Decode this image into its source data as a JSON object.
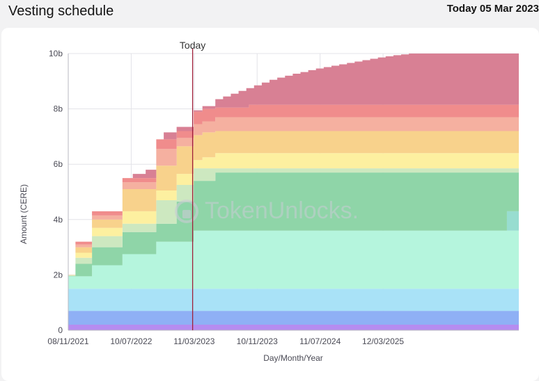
{
  "header": {
    "title": "Vesting schedule",
    "date": "Today 05 Mar 2023"
  },
  "watermark": {
    "brand": "TokenUnlocks.",
    "icon": "token-unlocks-logo-icon"
  },
  "chart_data": {
    "type": "area",
    "stacked": true,
    "step": true,
    "ylabel": "Amount (CERE)",
    "xlabel": "Day/Month/Year",
    "x_start": "2021-11-08",
    "x_end": "2026-08-20",
    "ylim": [
      0,
      10000000000
    ],
    "y_ticks": [
      {
        "value": 0,
        "label": "0"
      },
      {
        "value": 2000000000,
        "label": "2b"
      },
      {
        "value": 4000000000,
        "label": "4b"
      },
      {
        "value": 6000000000,
        "label": "6b"
      },
      {
        "value": 8000000000,
        "label": "8b"
      },
      {
        "value": 10000000000,
        "label": "10b"
      }
    ],
    "x_ticks": [
      {
        "date": "2021-11-08",
        "label": "08/11/2021"
      },
      {
        "date": "2022-07-10",
        "label": "10/07/2022"
      },
      {
        "date": "2023-03-11",
        "label": "11/03/2023"
      },
      {
        "date": "2023-11-10",
        "label": "10/11/2023"
      },
      {
        "date": "2024-07-11",
        "label": "11/07/2024"
      },
      {
        "date": "2025-03-12",
        "label": "12/03/2025"
      }
    ],
    "today": {
      "date": "2023-03-05",
      "label": "Today",
      "color": "#a0203a"
    },
    "grid": true,
    "series": [
      {
        "color": "#b68cf0",
        "values": [
          [
            0,
            0.2
          ],
          [
            9999,
            0.2
          ]
        ]
      },
      {
        "color": "#8fb0f5",
        "values": [
          [
            0,
            0.7
          ],
          [
            9999,
            0.7
          ]
        ]
      },
      {
        "color": "#a9e2f7",
        "values": [
          [
            0,
            1.5
          ],
          [
            9999,
            1.5
          ]
        ]
      },
      {
        "color": "#b5f5dd",
        "values": [
          [
            0,
            1.95
          ],
          [
            28,
            1.95
          ],
          [
            92,
            2.35
          ],
          [
            210,
            2.75
          ],
          [
            341,
            3.2
          ],
          [
            486,
            3.6
          ],
          [
            9999,
            3.6
          ]
        ]
      },
      {
        "color": "#98ddd0",
        "values": [
          [
            0,
            1.95
          ],
          [
            28,
            1.95
          ],
          [
            92,
            2.35
          ],
          [
            210,
            2.75
          ],
          [
            341,
            3.2
          ],
          [
            486,
            3.6
          ],
          [
            1700,
            4.3
          ],
          [
            9999,
            4.3
          ]
        ]
      },
      {
        "color": "#8fd5a8",
        "values": [
          [
            0,
            1.97
          ],
          [
            28,
            2.4
          ],
          [
            92,
            3.0
          ],
          [
            210,
            3.55
          ],
          [
            341,
            3.85
          ],
          [
            420,
            4.65
          ],
          [
            486,
            5.4
          ],
          [
            570,
            5.7
          ],
          [
            9999,
            5.7
          ]
        ]
      },
      {
        "color": "#cde8c0",
        "values": [
          [
            0,
            1.98
          ],
          [
            28,
            2.62
          ],
          [
            92,
            3.4
          ],
          [
            210,
            3.85
          ],
          [
            341,
            4.7
          ],
          [
            420,
            5.25
          ],
          [
            486,
            5.85
          ],
          [
            9999,
            5.85
          ]
        ]
      },
      {
        "color": "#fdf0a0",
        "values": [
          [
            0,
            1.99
          ],
          [
            28,
            2.8
          ],
          [
            92,
            3.7
          ],
          [
            210,
            4.3
          ],
          [
            341,
            5.05
          ],
          [
            420,
            5.65
          ],
          [
            486,
            6.15
          ],
          [
            520,
            6.25
          ],
          [
            570,
            6.4
          ],
          [
            9999,
            6.4
          ]
        ]
      },
      {
        "color": "#f8d28c",
        "values": [
          [
            0,
            2.0
          ],
          [
            28,
            3.0
          ],
          [
            92,
            4.0
          ],
          [
            210,
            5.1
          ],
          [
            341,
            5.95
          ],
          [
            420,
            6.65
          ],
          [
            486,
            7.05
          ],
          [
            520,
            7.15
          ],
          [
            570,
            7.2
          ],
          [
            9999,
            7.2
          ]
        ]
      },
      {
        "color": "#f5b0a0",
        "values": [
          [
            0,
            2.0
          ],
          [
            28,
            3.1
          ],
          [
            92,
            4.15
          ],
          [
            210,
            5.35
          ],
          [
            341,
            6.55
          ],
          [
            420,
            6.95
          ],
          [
            486,
            7.45
          ],
          [
            520,
            7.55
          ],
          [
            570,
            7.7
          ],
          [
            9999,
            7.75
          ]
        ]
      },
      {
        "color": "#f08c8c",
        "values": [
          [
            0,
            2.0
          ],
          [
            28,
            3.2
          ],
          [
            92,
            4.3
          ],
          [
            210,
            5.5
          ],
          [
            341,
            6.9
          ],
          [
            420,
            7.2
          ],
          [
            486,
            7.9
          ],
          [
            520,
            8.0
          ],
          [
            570,
            8.05
          ],
          [
            700,
            8.15
          ],
          [
            9999,
            8.2
          ]
        ]
      },
      {
        "color": "#d88094",
        "values": [
          [
            0,
            2.0
          ],
          [
            28,
            3.2
          ],
          [
            92,
            4.3
          ],
          [
            210,
            5.5
          ],
          [
            250,
            5.65
          ],
          [
            300,
            5.8
          ],
          [
            341,
            6.9
          ],
          [
            370,
            7.15
          ],
          [
            420,
            7.35
          ],
          [
            486,
            7.95
          ],
          [
            520,
            8.1
          ],
          [
            570,
            8.35
          ],
          [
            600,
            8.45
          ],
          [
            630,
            8.55
          ],
          [
            660,
            8.65
          ],
          [
            690,
            8.75
          ],
          [
            720,
            8.85
          ],
          [
            750,
            8.95
          ],
          [
            780,
            9.05
          ],
          [
            810,
            9.13
          ],
          [
            840,
            9.2
          ],
          [
            870,
            9.27
          ],
          [
            900,
            9.33
          ],
          [
            930,
            9.4
          ],
          [
            960,
            9.46
          ],
          [
            990,
            9.51
          ],
          [
            1020,
            9.56
          ],
          [
            1050,
            9.61
          ],
          [
            1080,
            9.66
          ],
          [
            1110,
            9.71
          ],
          [
            1140,
            9.76
          ],
          [
            1170,
            9.81
          ],
          [
            1200,
            9.86
          ],
          [
            1230,
            9.9
          ],
          [
            1260,
            9.94
          ],
          [
            1290,
            9.97
          ],
          [
            1320,
            10.0
          ],
          [
            9999,
            10.0
          ]
        ]
      }
    ]
  }
}
